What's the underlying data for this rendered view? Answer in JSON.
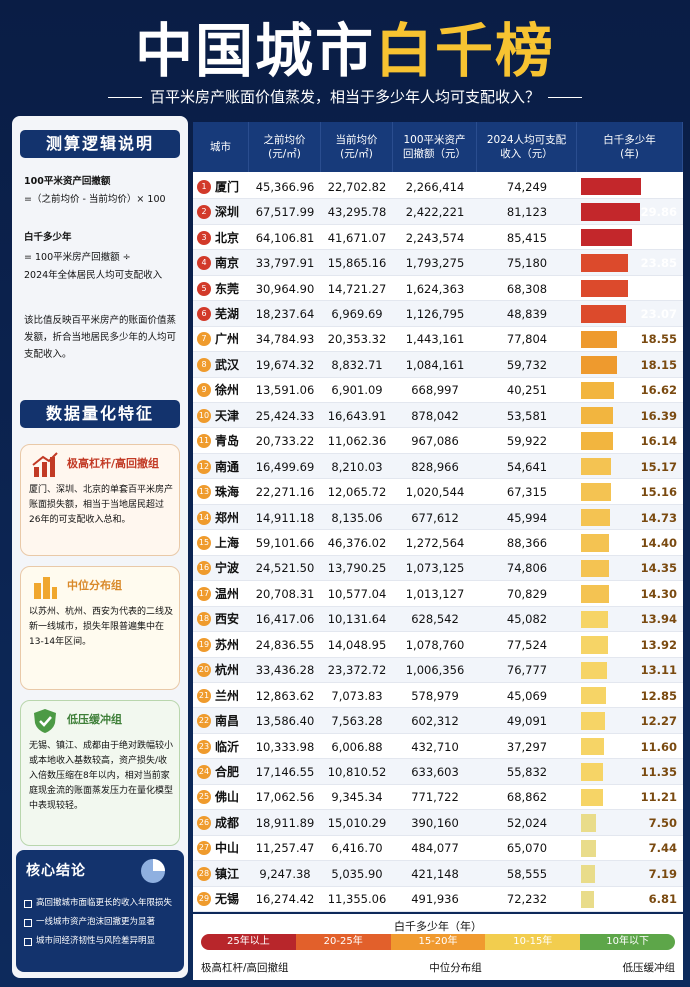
{
  "header": {
    "title_a": "中国城市",
    "title_b": "白千榜",
    "subtitle": "百平米房产账面价值蒸发，相当于多少年人均可支配收入？"
  },
  "method": {
    "title": "测算逻辑说明",
    "lines": [
      "100平米资产回撤额",
      "=（之前均价 - 当前均价）× 100",
      "白千多少年",
      "= 100平米房产回撤额 ÷",
      "2024年全体居民人均可支配收入"
    ],
    "note": "该比值反映百平米房产的账面价值蒸发额，折合当地居民多少年的人均可支配收入。"
  },
  "features": {
    "title": "数据量化特征",
    "cards": [
      {
        "title": "极高杠杆/高回撤组",
        "text": "厦门、深圳、北京的单套百平米房产账面损失额，相当于当地居民超过26年的可支配收入总和。"
      },
      {
        "title": "中位分布组",
        "text": "以苏州、杭州、西安为代表的二线及新一线城市，损失年限普遍集中在13-14年区间。"
      },
      {
        "title": "低压缓冲组",
        "text": "无锡、镇江、成都由于绝对跌幅较小或本地收入基数较高，资产损失/收入倍数压缩在8年以内，相对当前家庭现金流的账面蒸发压力在量化模型中表现较轻。"
      }
    ]
  },
  "conclusion": {
    "title": "核心结论",
    "items": [
      "高回撤城市面临更长的收入年限损失",
      "一线城市资产泡沫回撤更为显著",
      "城市间经济韧性与风险差异明显"
    ]
  },
  "table": {
    "columns": [
      "城市",
      "之前均价\n(元/㎡)",
      "当前均价\n(元/㎡)",
      "100平米资产\n回撤额（元）",
      "2024人均可支配\n收入（元）",
      "白千多少年\n(年)"
    ],
    "xlim": [
      0,
      50
    ],
    "rows": [
      {
        "rank": 1,
        "city": "厦门",
        "before": "45,366.96",
        "now": "22,702.82",
        "drop": "2,266,414",
        "income": "74,249",
        "years": 30.52,
        "color": "#c3272b"
      },
      {
        "rank": 2,
        "city": "深圳",
        "before": "67,517.99",
        "now": "43,295.78",
        "drop": "2,422,221",
        "income": "81,123",
        "years": 29.86,
        "color": "#c3272b"
      },
      {
        "rank": 3,
        "city": "北京",
        "before": "64,106.81",
        "now": "41,671.07",
        "drop": "2,243,574",
        "income": "85,415",
        "years": 26.27,
        "color": "#c3272b"
      },
      {
        "rank": 4,
        "city": "南京",
        "before": "33,797.91",
        "now": "15,865.16",
        "drop": "1,793,275",
        "income": "75,180",
        "years": 23.85,
        "color": "#dc4a2c"
      },
      {
        "rank": 5,
        "city": "东莞",
        "before": "30,964.90",
        "now": "14,721.27",
        "drop": "1,624,363",
        "income": "68,308",
        "years": 23.78,
        "color": "#dc4a2c"
      },
      {
        "rank": 6,
        "city": "芜湖",
        "before": "18,237.64",
        "now": "6,969.69",
        "drop": "1,126,795",
        "income": "48,839",
        "years": 23.07,
        "color": "#dc4a2c"
      },
      {
        "rank": 7,
        "city": "广州",
        "before": "34,784.93",
        "now": "20,353.32",
        "drop": "1,443,161",
        "income": "77,804",
        "years": 18.55,
        "color": "#ee9a2e"
      },
      {
        "rank": 8,
        "city": "武汉",
        "before": "19,674.32",
        "now": "8,832.71",
        "drop": "1,084,161",
        "income": "59,732",
        "years": 18.15,
        "color": "#ee9a2e"
      },
      {
        "rank": 9,
        "city": "徐州",
        "before": "13,591.06",
        "now": "6,901.09",
        "drop": "668,997",
        "income": "40,251",
        "years": 16.62,
        "color": "#f2b53f"
      },
      {
        "rank": 10,
        "city": "天津",
        "before": "25,424.33",
        "now": "16,643.91",
        "drop": "878,042",
        "income": "53,581",
        "years": 16.39,
        "color": "#f2b53f"
      },
      {
        "rank": 11,
        "city": "青岛",
        "before": "20,733.22",
        "now": "11,062.36",
        "drop": "967,086",
        "income": "59,922",
        "years": 16.14,
        "color": "#f2b53f"
      },
      {
        "rank": 12,
        "city": "南通",
        "before": "16,499.69",
        "now": "8,210.03",
        "drop": "828,966",
        "income": "54,641",
        "years": 15.17,
        "color": "#f4c352"
      },
      {
        "rank": 13,
        "city": "珠海",
        "before": "22,271.16",
        "now": "12,065.72",
        "drop": "1,020,544",
        "income": "67,315",
        "years": 15.16,
        "color": "#f4c352"
      },
      {
        "rank": 14,
        "city": "郑州",
        "before": "14,911.18",
        "now": "8,135.06",
        "drop": "677,612",
        "income": "45,994",
        "years": 14.73,
        "color": "#f4c352"
      },
      {
        "rank": 15,
        "city": "上海",
        "before": "59,101.66",
        "now": "46,376.02",
        "drop": "1,272,564",
        "income": "88,366",
        "years": 14.4,
        "years_label": "14.40",
        "color": "#f4c352"
      },
      {
        "rank": 16,
        "city": "宁波",
        "before": "24,521.50",
        "now": "13,790.25",
        "drop": "1,073,125",
        "income": "74,806",
        "years": 14.35,
        "color": "#f4c352"
      },
      {
        "rank": 17,
        "city": "温州",
        "before": "20,708.31",
        "now": "10,577.04",
        "drop": "1,013,127",
        "income": "70,829",
        "years": 14.3,
        "years_label": "14.30",
        "color": "#f4c352"
      },
      {
        "rank": 18,
        "city": "西安",
        "before": "16,417.06",
        "now": "10,131.64",
        "drop": "628,542",
        "income": "45,082",
        "years": 13.94,
        "color": "#f6d466"
      },
      {
        "rank": 19,
        "city": "苏州",
        "before": "24,836.55",
        "now": "14,048.95",
        "drop": "1,078,760",
        "income": "77,524",
        "years": 13.92,
        "color": "#f6d466"
      },
      {
        "rank": 20,
        "city": "杭州",
        "before": "33,436.28",
        "now": "23,372.72",
        "drop": "1,006,356",
        "income": "76,777",
        "years": 13.11,
        "color": "#f6d466"
      },
      {
        "rank": 21,
        "city": "兰州",
        "before": "12,863.62",
        "now": "7,073.83",
        "drop": "578,979",
        "income": "45,069",
        "years": 12.85,
        "color": "#f6d466"
      },
      {
        "rank": 22,
        "city": "南昌",
        "before": "13,586.40",
        "now": "7,563.28",
        "drop": "602,312",
        "income": "49,091",
        "years": 12.27,
        "color": "#f6d466"
      },
      {
        "rank": 23,
        "city": "临沂",
        "before": "10,333.98",
        "now": "6,006.88",
        "drop": "432,710",
        "income": "37,297",
        "years": 11.6,
        "years_label": "11.60",
        "color": "#f6d466"
      },
      {
        "rank": 24,
        "city": "合肥",
        "before": "17,146.55",
        "now": "10,810.52",
        "drop": "633,603",
        "income": "55,832",
        "years": 11.35,
        "color": "#f6d466"
      },
      {
        "rank": 25,
        "city": "佛山",
        "before": "17,062.56",
        "now": "9,345.34",
        "drop": "771,722",
        "income": "68,862",
        "years": 11.21,
        "color": "#f6d466"
      },
      {
        "rank": 26,
        "city": "成都",
        "before": "18,911.89",
        "now": "15,010.29",
        "drop": "390,160",
        "income": "52,024",
        "years": 7.5,
        "years_label": "7.50",
        "color": "#e9dc8a"
      },
      {
        "rank": 27,
        "city": "中山",
        "before": "11,257.47",
        "now": "6,416.70",
        "drop": "484,077",
        "income": "65,070",
        "years": 7.44,
        "color": "#e9dc8a"
      },
      {
        "rank": 28,
        "city": "镇江",
        "before": "9,247.38",
        "now": "5,035.90",
        "drop": "421,148",
        "income": "58,555",
        "years": 7.19,
        "color": "#e9dc8a"
      },
      {
        "rank": 29,
        "city": "无锡",
        "before": "16,274.42",
        "now": "11,355.06",
        "drop": "491,936",
        "income": "72,232",
        "years": 6.81,
        "color": "#e9dc8a"
      }
    ]
  },
  "legend": {
    "title": "白千多少年（年）",
    "bands": [
      {
        "label": "25年以上",
        "color": "#b8262b"
      },
      {
        "label": "20-25年",
        "color": "#e2602b"
      },
      {
        "label": "15-20年",
        "color": "#f09a2f"
      },
      {
        "label": "10-15年",
        "color": "#f2cd4e"
      },
      {
        "label": "10年以下",
        "color": "#5da649"
      }
    ],
    "groups": [
      "极高杠杆/高回撤组",
      "中位分布组",
      "低压缓冲组"
    ]
  }
}
